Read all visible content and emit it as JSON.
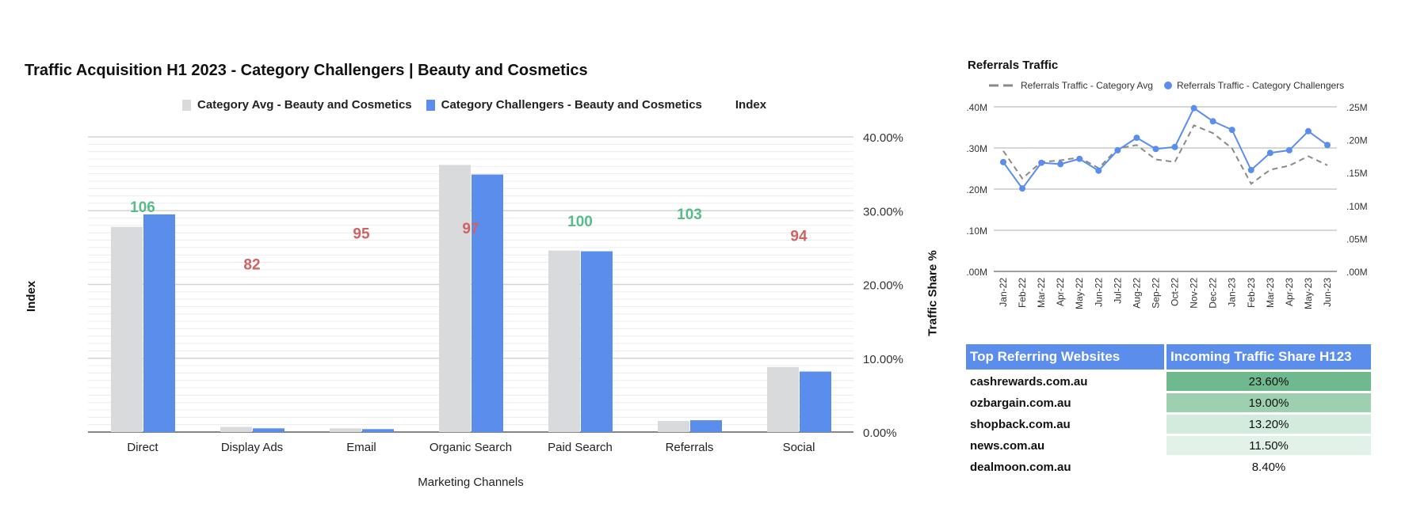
{
  "chart_data": [
    {
      "type": "bar",
      "title": "Traffic Acquisition H1 2023 - Category Challengers | Beauty and Cosmetics",
      "xlabel": "Marketing Channels",
      "ylabel_left": "Index",
      "ylabel_right": "Traffic Share %",
      "categories": [
        "Direct",
        "Display Ads",
        "Email",
        "Organic Search",
        "Paid Search",
        "Referrals",
        "Social"
      ],
      "series": [
        {
          "name": "Category Avg - Beauty and Cosmetics",
          "color": "#d9dadc",
          "values": [
            27.8,
            0.7,
            0.5,
            36.2,
            24.6,
            1.5,
            8.8
          ]
        },
        {
          "name": "Category Challengers  - Beauty and Cosmetics",
          "color": "#5b8ded",
          "values": [
            29.5,
            0.5,
            0.4,
            34.9,
            24.5,
            1.6,
            8.2
          ]
        }
      ],
      "index": {
        "name": "Index",
        "values": [
          106,
          82,
          95,
          97,
          100,
          103,
          94
        ],
        "color_above": "#57bb8a",
        "color_below": "#d06262"
      },
      "y_ticks": [
        "0.00%",
        "10.00%",
        "20.00%",
        "30.00%",
        "40.00%"
      ],
      "ylim": [
        0,
        40
      ],
      "index_range": [
        12,
        135
      ],
      "legend": "top-center"
    },
    {
      "type": "line",
      "title": "Referrals Traffic",
      "x": [
        "Jan-22",
        "Feb-22",
        "Mar-22",
        "Apr-22",
        "May-22",
        "Jun-22",
        "Jul-22",
        "Aug-22",
        "Sep-22",
        "Oct-22",
        "Nov-22",
        "Dec-22",
        "Jan-23",
        "Feb-23",
        "Mar-23",
        "Apr-23",
        "May-23",
        "Jun-23"
      ],
      "series": [
        {
          "name": "Referrals Traffic - Category Avg",
          "axis": "left",
          "style": "dashed",
          "color": "#8a8a8a",
          "values": [
            0.293,
            0.226,
            0.266,
            0.27,
            0.277,
            0.251,
            0.299,
            0.307,
            0.272,
            0.266,
            0.355,
            0.336,
            0.299,
            0.213,
            0.247,
            0.257,
            0.28,
            0.258
          ]
        },
        {
          "name": "Referrals Traffic - Category Challengers",
          "axis": "right",
          "style": "line-markers",
          "color": "#5b8ded",
          "values": [
            0.166,
            0.126,
            0.165,
            0.163,
            0.171,
            0.153,
            0.184,
            0.203,
            0.186,
            0.189,
            0.248,
            0.228,
            0.215,
            0.154,
            0.18,
            0.184,
            0.213,
            0.192
          ]
        }
      ],
      "left_ticks": [
        ".00M",
        ".10M",
        ".20M",
        ".30M",
        ".40M"
      ],
      "right_ticks": [
        ".00M",
        ".05M",
        ".10M",
        ".15M",
        ".20M",
        ".25M"
      ],
      "ylim_left": [
        0,
        0.4
      ],
      "ylim_right": [
        0,
        0.25
      ],
      "legend": "top"
    }
  ],
  "table": {
    "headers": [
      "Top Referring Websites",
      "Incoming Traffic Share H123"
    ],
    "rows": [
      {
        "site": "cashrewards.com.au",
        "share": "23.60%",
        "color": "#6fb98e"
      },
      {
        "site": "ozbargain.com.au",
        "share": "19.00%",
        "color": "#9dd0b0"
      },
      {
        "site": "shopback.com.au",
        "share": "13.20%",
        "color": "#d3ebdc"
      },
      {
        "site": "news.com.au",
        "share": "11.50%",
        "color": "#e2f2e8"
      },
      {
        "site": "dealmoon.com.au",
        "share": "8.40%",
        "color": "#ffffff"
      }
    ]
  }
}
